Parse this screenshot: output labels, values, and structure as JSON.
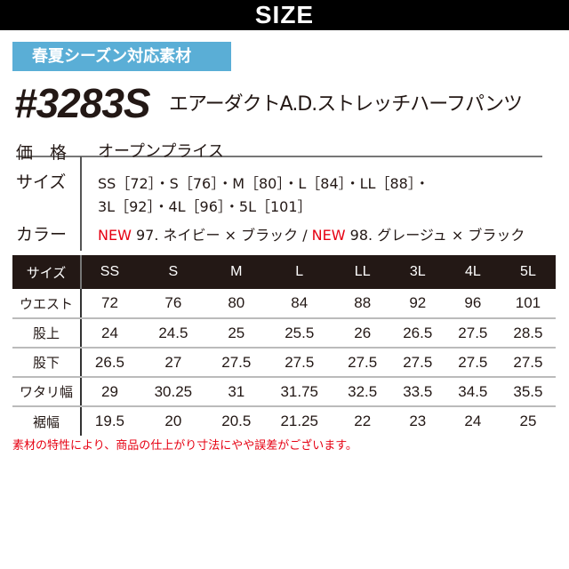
{
  "header": {
    "title": "SIZE"
  },
  "badge": "春夏シーズン対応素材",
  "product": {
    "number": "#3283S",
    "name": "エアーダクトA.D.ストレッチハーフパンツ"
  },
  "specs": {
    "price_label": "価　格",
    "price": "オープンプライス",
    "size_label": "サイズ",
    "sizes_line1": "SS［72］・S［76］・M［80］・L［84］・LL［88］・",
    "sizes_line2": "3L［92］・4L［96］・5L［101］",
    "color_label": "カラー",
    "new1": "NEW",
    "color1": " 97. ネイビー × ブラック / ",
    "new2": "NEW",
    "color2": " 98. グレージュ × ブラック"
  },
  "table": {
    "headers": [
      "サイズ",
      "SS",
      "S",
      "M",
      "L",
      "LL",
      "3L",
      "4L",
      "5L"
    ],
    "rows": [
      [
        "ウエスト",
        "72",
        "76",
        "80",
        "84",
        "88",
        "92",
        "96",
        "101"
      ],
      [
        "股上",
        "24",
        "24.5",
        "25",
        "25.5",
        "26",
        "26.5",
        "27.5",
        "28.5"
      ],
      [
        "股下",
        "26.5",
        "27",
        "27.5",
        "27.5",
        "27.5",
        "27.5",
        "27.5",
        "27.5"
      ],
      [
        "ワタリ幅",
        "29",
        "30.25",
        "31",
        "31.75",
        "32.5",
        "33.5",
        "34.5",
        "35.5"
      ],
      [
        "裾幅",
        "19.5",
        "20",
        "20.5",
        "21.25",
        "22",
        "23",
        "24",
        "25"
      ]
    ]
  },
  "note": "素材の特性により、商品の仕上がり寸法にやや誤差がございます。",
  "colors": {
    "badge": "#5aaed6",
    "accent": "#e60012",
    "table_header": "#231815"
  }
}
